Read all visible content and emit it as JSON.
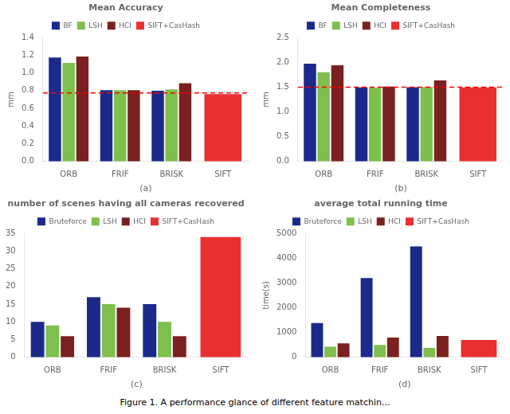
{
  "caption": "Figure 1. A performance glance of different feature matchin...",
  "chart_data": [
    {
      "type": "bar",
      "title": "Mean Accuracy",
      "xlabel": "(a)",
      "ylabel": "mm",
      "categories": [
        "ORB",
        "FRIF",
        "BRISK",
        "SIFT"
      ],
      "series": [
        {
          "name": "BF",
          "color": "#1b2a8a",
          "values": [
            1.175,
            0.805,
            0.8,
            null
          ]
        },
        {
          "name": "LSH",
          "color": "#7fbf4d",
          "values": [
            1.115,
            0.805,
            0.815,
            null
          ]
        },
        {
          "name": "HCI",
          "color": "#7b2020",
          "values": [
            1.185,
            0.805,
            0.885,
            null
          ]
        },
        {
          "name": "SIFT+CasHash",
          "color": "#e83030",
          "values": [
            null,
            null,
            null,
            0.76
          ]
        }
      ],
      "reference_line": {
        "value": 0.775,
        "color": "red",
        "line_style": "dashed"
      },
      "ylim": [
        0,
        1.4
      ],
      "yticks": [
        {
          "value": 0,
          "label": "0.0"
        },
        {
          "value": 0.2,
          "label": "0.2"
        },
        {
          "value": 0.4,
          "label": "0.4"
        },
        {
          "value": 0.6,
          "label": "0.6"
        },
        {
          "value": 0.8,
          "label": "0.8"
        },
        {
          "value": 1.0,
          "label": "1.0"
        },
        {
          "value": 1.2,
          "label": "1.2"
        },
        {
          "value": 1.4,
          "label": "1.4"
        }
      ],
      "grid": false,
      "legend": "top"
    },
    {
      "type": "bar",
      "title": "Mean Completeness",
      "xlabel": "(b)",
      "ylabel": "mm",
      "categories": [
        "ORB",
        "FRIF",
        "BRISK",
        "SIFT"
      ],
      "series": [
        {
          "name": "BF",
          "color": "#1b2a8a",
          "values": [
            1.975,
            1.495,
            1.5,
            null
          ]
        },
        {
          "name": "LSH",
          "color": "#7fbf4d",
          "values": [
            1.8,
            1.49,
            1.505,
            null
          ]
        },
        {
          "name": "HCI",
          "color": "#7b2020",
          "values": [
            1.94,
            1.51,
            1.635,
            null
          ]
        },
        {
          "name": "SIFT+CasHash",
          "color": "#e83030",
          "values": [
            null,
            null,
            null,
            1.495
          ]
        }
      ],
      "reference_line": {
        "value": 1.5,
        "color": "red",
        "line_style": "dashed"
      },
      "ylim": [
        0,
        2.5
      ],
      "yticks": [
        {
          "value": 0,
          "label": "0.0"
        },
        {
          "value": 0.5,
          "label": "0.5"
        },
        {
          "value": 1.0,
          "label": "1.0"
        },
        {
          "value": 1.5,
          "label": "1.5"
        },
        {
          "value": 2.0,
          "label": "2.0"
        },
        {
          "value": 2.5,
          "label": "2.5"
        }
      ],
      "grid": false,
      "legend": "top"
    },
    {
      "type": "bar",
      "title": "number of scenes having all cameras recovered",
      "xlabel": "(c)",
      "categories": [
        "ORB",
        "FRIF",
        "BRISK",
        "SIFT"
      ],
      "series": [
        {
          "name": "Bruteforce",
          "color": "#1b2a8a",
          "values": [
            10,
            17,
            15,
            null
          ]
        },
        {
          "name": "LSH",
          "color": "#7fbf4d",
          "values": [
            9,
            15,
            10,
            null
          ]
        },
        {
          "name": "HCI",
          "color": "#7b2020",
          "values": [
            6,
            14,
            6,
            null
          ]
        },
        {
          "name": "SIFT+CasHash",
          "color": "#e83030",
          "values": [
            null,
            null,
            null,
            34
          ]
        }
      ],
      "ylim": [
        0,
        35
      ],
      "yticks": [
        0,
        5,
        10,
        15,
        20,
        25,
        30,
        35
      ],
      "grid": false,
      "legend": "top"
    },
    {
      "type": "bar",
      "title": "average total running time",
      "xlabel": "(d)",
      "ylabel": "time(s)",
      "categories": [
        "ORB",
        "FRIF",
        "BRISK",
        "SIFT"
      ],
      "series": [
        {
          "name": "Bruteforce",
          "color": "#1b2a8a",
          "values": [
            1380,
            3200,
            4480,
            null
          ]
        },
        {
          "name": "LSH",
          "color": "#7fbf4d",
          "values": [
            430,
            500,
            380,
            null
          ]
        },
        {
          "name": "HCI",
          "color": "#7b2020",
          "values": [
            560,
            800,
            860,
            null
          ]
        },
        {
          "name": "SIFT+CasHash",
          "color": "#e83030",
          "values": [
            null,
            null,
            null,
            700
          ]
        }
      ],
      "ylim": [
        0,
        5000
      ],
      "yticks": [
        0,
        1000,
        2000,
        3000,
        4000,
        5000
      ],
      "grid": false,
      "legend": "top"
    }
  ]
}
